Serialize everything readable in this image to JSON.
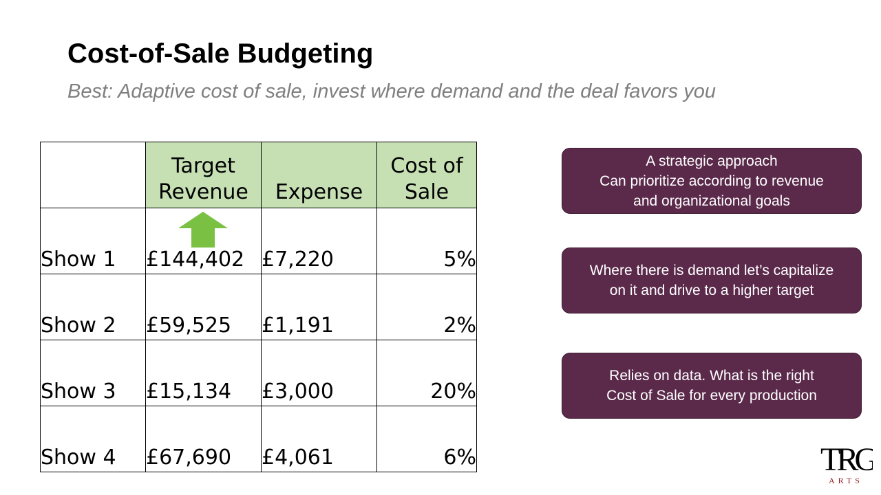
{
  "slide": {
    "title": "Cost-of-Sale Budgeting",
    "subtitle": "Best: Adaptive cost of sale, invest where demand and the deal favors you"
  },
  "table": {
    "headers": {
      "target_revenue_line1": "Target",
      "target_revenue_line2": "Revenue",
      "expense": "Expense",
      "cost_of_sale_line1": "Cost of",
      "cost_of_sale_line2": "Sale"
    },
    "rows": [
      {
        "label": "Show 1",
        "target_revenue": "£144,402",
        "expense": "£7,220",
        "cost_of_sale": "5%"
      },
      {
        "label": "Show 2",
        "target_revenue": "£59,525",
        "expense": "£1,191",
        "cost_of_sale": "2%"
      },
      {
        "label": "Show 3",
        "target_revenue": "£15,134",
        "expense": "£3,000",
        "cost_of_sale": "20%"
      },
      {
        "label": "Show 4",
        "target_revenue": "£67,690",
        "expense": "£4,061",
        "cost_of_sale": "6%"
      }
    ],
    "arrow_icon": "up-arrow-icon",
    "arrow_color": "#7ac143",
    "header_fill_color": "#c6e0b4"
  },
  "notes": [
    {
      "lines": [
        "A strategic approach",
        "Can prioritize according to revenue",
        "and organizational goals"
      ]
    },
    {
      "lines": [
        "Where there is demand let’s capitalize",
        "on it and drive to a higher target"
      ]
    },
    {
      "lines": [
        "Relies on data. What is the right",
        "Cost of Sale for every production"
      ]
    }
  ],
  "note_color": "#5b2a4b",
  "logo": {
    "letters": "TRG",
    "caption": "ARTS",
    "caption_color": "#8b1a1a"
  }
}
